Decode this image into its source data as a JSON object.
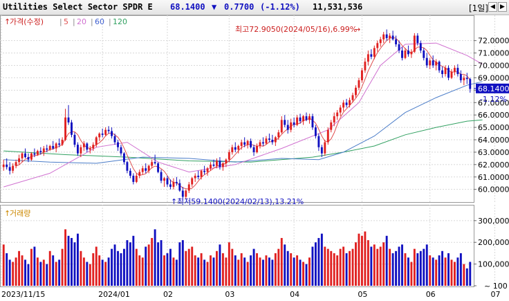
{
  "header": {
    "title": "Utilities Select Sector SPDR E",
    "price": "68.1400",
    "change_arrow": "▼",
    "change": "0.7700",
    "change_pct": "(-1.12%)",
    "volume": "11,531,536",
    "period": "[1일]",
    "btn_prev": "◀",
    "btn_next": "▶"
  },
  "legend": {
    "label": "가격(수정)",
    "ma": [
      {
        "label": "5",
        "color": "#e05050"
      },
      {
        "label": "20",
        "color": "#d070d0"
      },
      {
        "label": "60",
        "color": "#4060d0"
      },
      {
        "label": "120",
        "color": "#30a060"
      }
    ]
  },
  "volume_legend": "거래량",
  "colors": {
    "up": "#e02020",
    "down": "#1010c0",
    "ma5": "#e05050",
    "ma20": "#d070d0",
    "ma60": "#4a7cc8",
    "ma120": "#30a060"
  },
  "chart_data": {
    "type": "candlestick",
    "price_axis": {
      "ticks": [
        "72.0000",
        "71.0000",
        "70.0000",
        "69.0000",
        "68.0000",
        "67.0000",
        "66.0000",
        "65.0000",
        "64.0000",
        "63.0000",
        "62.0000",
        "61.0000",
        "60.0000"
      ],
      "ylim": [
        59.2,
        73.6
      ]
    },
    "volume_axis": {
      "ticks": [
        "300,000",
        "200,000",
        "100,000",
        "100"
      ],
      "ylim": [
        0,
        360000
      ]
    },
    "x_tick_labels": [
      {
        "label": "2023/11/15",
        "index": 0
      },
      {
        "label": "2024/01",
        "index": 32
      },
      {
        "label": "02",
        "index": 53
      },
      {
        "label": "03",
        "index": 73
      },
      {
        "label": "04",
        "index": 94
      },
      {
        "label": "05",
        "index": 116
      },
      {
        "label": "06",
        "index": 138
      },
      {
        "label": "07",
        "index": 159
      }
    ],
    "current_price": {
      "value": 68.14,
      "label": "68.1400",
      "pct_label": "-1.12%"
    },
    "high_annotation": {
      "text": "최고72.9050(2024/05/16),6.99%",
      "index": 125,
      "value": 72.905
    },
    "low_annotation": {
      "text": "최저59.1400(2024/02/13),13.21%",
      "index": 61,
      "value": 59.14
    },
    "ma_series": {
      "ma20": [
        [
          0,
          60.2
        ],
        [
          15,
          61.3
        ],
        [
          30,
          63.4
        ],
        [
          40,
          63.8
        ],
        [
          50,
          62.2
        ],
        [
          60,
          61.4
        ],
        [
          75,
          62.0
        ],
        [
          90,
          63.3
        ],
        [
          105,
          64.8
        ],
        [
          115,
          67.0
        ],
        [
          122,
          70.0
        ],
        [
          130,
          71.7
        ],
        [
          140,
          71.8
        ],
        [
          150,
          70.8
        ],
        [
          155,
          70.1
        ]
      ],
      "ma60": [
        [
          0,
          62.4
        ],
        [
          15,
          62.2
        ],
        [
          30,
          62.1
        ],
        [
          45,
          62.6
        ],
        [
          60,
          62.5
        ],
        [
          75,
          62.2
        ],
        [
          90,
          62.5
        ],
        [
          102,
          62.4
        ],
        [
          110,
          63.0
        ],
        [
          120,
          64.3
        ],
        [
          130,
          66.2
        ],
        [
          140,
          67.4
        ],
        [
          150,
          68.4
        ],
        [
          155,
          68.7
        ]
      ],
      "ma120": [
        [
          0,
          63.1
        ],
        [
          20,
          62.8
        ],
        [
          40,
          62.6
        ],
        [
          60,
          62.3
        ],
        [
          80,
          62.2
        ],
        [
          100,
          62.6
        ],
        [
          110,
          63.0
        ],
        [
          120,
          63.5
        ],
        [
          130,
          64.4
        ],
        [
          140,
          65.0
        ],
        [
          150,
          65.5
        ],
        [
          155,
          65.6
        ]
      ]
    },
    "candles": [
      [
        61.8,
        62.4,
        61.5,
        62.0,
        190000
      ],
      [
        62.0,
        62.5,
        61.6,
        61.8,
        150000
      ],
      [
        61.8,
        62.2,
        61.2,
        61.5,
        120000
      ],
      [
        61.5,
        62.1,
        61.3,
        61.9,
        110000
      ],
      [
        61.9,
        62.4,
        61.7,
        62.2,
        130000
      ],
      [
        62.2,
        62.8,
        62.0,
        62.5,
        160000
      ],
      [
        62.5,
        63.0,
        62.2,
        62.9,
        140000
      ],
      [
        62.9,
        63.3,
        62.5,
        62.6,
        120000
      ],
      [
        62.6,
        62.9,
        62.2,
        62.4,
        100000
      ],
      [
        62.4,
        63.0,
        62.3,
        62.9,
        170000
      ],
      [
        62.9,
        63.3,
        62.6,
        62.8,
        180000
      ],
      [
        62.8,
        63.2,
        62.7,
        63.1,
        130000
      ],
      [
        63.1,
        63.4,
        62.8,
        63.0,
        110000
      ],
      [
        63.0,
        63.5,
        62.7,
        63.3,
        120000
      ],
      [
        63.3,
        63.6,
        63.0,
        63.2,
        100000
      ],
      [
        63.2,
        63.6,
        63.1,
        63.5,
        160000
      ],
      [
        63.5,
        63.9,
        63.2,
        63.3,
        140000
      ],
      [
        63.3,
        63.8,
        63.0,
        63.7,
        110000
      ],
      [
        63.7,
        64.1,
        63.4,
        63.6,
        120000
      ],
      [
        63.6,
        64.2,
        63.5,
        64.0,
        170000
      ],
      [
        64.0,
        66.5,
        63.9,
        65.8,
        260000
      ],
      [
        65.8,
        66.8,
        65.2,
        65.4,
        230000
      ],
      [
        65.4,
        65.6,
        64.2,
        64.4,
        220000
      ],
      [
        64.4,
        64.6,
        63.4,
        63.6,
        200000
      ],
      [
        63.6,
        63.8,
        62.7,
        62.9,
        240000
      ],
      [
        62.9,
        63.6,
        62.6,
        63.4,
        160000
      ],
      [
        63.4,
        63.9,
        63.1,
        63.7,
        130000
      ],
      [
        63.7,
        63.8,
        63.0,
        63.2,
        110000
      ],
      [
        63.2,
        63.5,
        62.9,
        63.3,
        100000
      ],
      [
        63.3,
        63.8,
        63.1,
        63.6,
        150000
      ],
      [
        63.6,
        64.3,
        63.4,
        64.2,
        180000
      ],
      [
        64.2,
        64.6,
        63.9,
        64.5,
        140000
      ],
      [
        64.5,
        64.9,
        64.2,
        64.4,
        120000
      ],
      [
        64.4,
        65.0,
        64.3,
        64.8,
        110000
      ],
      [
        64.8,
        65.1,
        64.5,
        64.7,
        130000
      ],
      [
        64.7,
        65.0,
        64.1,
        64.3,
        170000
      ],
      [
        64.3,
        64.5,
        63.6,
        63.8,
        190000
      ],
      [
        63.8,
        64.0,
        63.1,
        63.4,
        160000
      ],
      [
        63.4,
        63.6,
        62.7,
        62.9,
        150000
      ],
      [
        62.9,
        63.0,
        62.0,
        62.2,
        170000
      ],
      [
        62.2,
        62.3,
        61.3,
        61.5,
        210000
      ],
      [
        61.5,
        61.7,
        60.9,
        61.1,
        200000
      ],
      [
        61.1,
        61.3,
        60.4,
        60.6,
        230000
      ],
      [
        60.6,
        61.3,
        60.5,
        61.1,
        170000
      ],
      [
        61.1,
        61.6,
        60.9,
        61.4,
        140000
      ],
      [
        61.4,
        61.9,
        61.2,
        61.7,
        130000
      ],
      [
        61.7,
        62.1,
        61.3,
        61.5,
        180000
      ],
      [
        61.5,
        62.0,
        61.3,
        61.9,
        190000
      ],
      [
        61.9,
        62.4,
        61.7,
        62.2,
        220000
      ],
      [
        62.2,
        62.8,
        62.0,
        62.1,
        260000
      ],
      [
        62.1,
        62.2,
        61.3,
        61.4,
        200000
      ],
      [
        61.4,
        61.6,
        60.5,
        60.7,
        210000
      ],
      [
        60.7,
        61.0,
        60.2,
        60.9,
        140000
      ],
      [
        60.9,
        61.1,
        60.2,
        60.4,
        150000
      ],
      [
        60.4,
        60.8,
        60.0,
        60.2,
        170000
      ],
      [
        60.2,
        60.9,
        60.0,
        60.6,
        130000
      ],
      [
        60.6,
        61.0,
        60.3,
        60.5,
        120000
      ],
      [
        60.5,
        60.8,
        59.8,
        59.9,
        200000
      ],
      [
        59.9,
        60.2,
        59.1,
        59.4,
        210000
      ],
      [
        59.4,
        60.0,
        59.2,
        59.9,
        160000
      ],
      [
        59.9,
        60.6,
        59.7,
        60.4,
        170000
      ],
      [
        60.4,
        61.0,
        60.2,
        60.9,
        180000
      ],
      [
        60.9,
        61.3,
        60.6,
        61.1,
        140000
      ],
      [
        61.1,
        61.5,
        60.8,
        61.0,
        130000
      ],
      [
        61.0,
        61.6,
        60.8,
        61.5,
        150000
      ],
      [
        61.5,
        61.9,
        61.2,
        61.4,
        120000
      ],
      [
        61.4,
        61.8,
        61.1,
        61.7,
        110000
      ],
      [
        61.7,
        62.2,
        61.5,
        62.0,
        140000
      ],
      [
        62.0,
        62.4,
        61.8,
        61.9,
        130000
      ],
      [
        61.9,
        62.5,
        61.7,
        62.3,
        160000
      ],
      [
        62.3,
        62.6,
        61.6,
        61.8,
        190000
      ],
      [
        61.8,
        62.2,
        61.5,
        62.1,
        150000
      ],
      [
        62.1,
        62.5,
        61.8,
        62.4,
        130000
      ],
      [
        62.4,
        63.2,
        62.2,
        63.0,
        200000
      ],
      [
        63.0,
        63.6,
        62.8,
        63.4,
        170000
      ],
      [
        63.4,
        63.8,
        63.0,
        63.2,
        140000
      ],
      [
        63.2,
        63.6,
        62.9,
        63.5,
        120000
      ],
      [
        63.5,
        64.0,
        63.2,
        63.8,
        150000
      ],
      [
        63.8,
        64.2,
        63.4,
        63.6,
        130000
      ],
      [
        63.6,
        64.0,
        63.3,
        63.9,
        110000
      ],
      [
        63.9,
        64.1,
        63.3,
        63.4,
        140000
      ],
      [
        63.4,
        63.6,
        62.7,
        63.0,
        170000
      ],
      [
        63.0,
        63.7,
        62.9,
        63.5,
        150000
      ],
      [
        63.5,
        64.0,
        63.3,
        63.8,
        130000
      ],
      [
        63.8,
        64.2,
        63.5,
        63.7,
        120000
      ],
      [
        63.7,
        64.3,
        63.6,
        64.1,
        140000
      ],
      [
        64.1,
        64.5,
        63.8,
        64.0,
        130000
      ],
      [
        64.0,
        64.4,
        63.6,
        63.8,
        120000
      ],
      [
        63.8,
        64.3,
        63.5,
        64.2,
        150000
      ],
      [
        64.2,
        64.8,
        64.0,
        64.6,
        170000
      ],
      [
        64.6,
        65.9,
        64.5,
        65.6,
        220000
      ],
      [
        65.6,
        66.0,
        65.0,
        65.2,
        190000
      ],
      [
        65.2,
        65.6,
        64.5,
        64.8,
        160000
      ],
      [
        64.8,
        65.7,
        64.6,
        65.4,
        150000
      ],
      [
        65.4,
        65.8,
        65.0,
        65.2,
        130000
      ],
      [
        65.2,
        66.0,
        65.1,
        65.8,
        140000
      ],
      [
        65.8,
        66.1,
        65.3,
        65.5,
        120000
      ],
      [
        65.5,
        66.0,
        65.2,
        65.9,
        110000
      ],
      [
        65.9,
        66.2,
        65.5,
        65.6,
        100000
      ],
      [
        65.6,
        66.1,
        65.3,
        65.9,
        130000
      ],
      [
        65.9,
        66.1,
        64.8,
        65.0,
        180000
      ],
      [
        65.0,
        65.2,
        64.1,
        64.3,
        200000
      ],
      [
        64.3,
        64.5,
        63.1,
        63.4,
        220000
      ],
      [
        63.4,
        63.6,
        62.6,
        62.9,
        240000
      ],
      [
        62.9,
        64.0,
        62.7,
        63.8,
        180000
      ],
      [
        63.8,
        65.0,
        63.6,
        64.8,
        170000
      ],
      [
        64.8,
        65.6,
        64.6,
        65.4,
        160000
      ],
      [
        65.4,
        66.2,
        65.1,
        65.9,
        150000
      ],
      [
        65.9,
        66.4,
        65.6,
        66.2,
        140000
      ],
      [
        66.2,
        66.8,
        65.9,
        66.6,
        170000
      ],
      [
        66.6,
        67.2,
        66.3,
        67.0,
        180000
      ],
      [
        67.0,
        67.3,
        66.6,
        66.8,
        150000
      ],
      [
        66.8,
        67.4,
        66.6,
        67.2,
        160000
      ],
      [
        67.2,
        67.8,
        67.0,
        67.6,
        170000
      ],
      [
        67.6,
        68.4,
        67.4,
        68.2,
        200000
      ],
      [
        68.2,
        69.0,
        68.0,
        68.8,
        240000
      ],
      [
        68.8,
        69.8,
        68.6,
        69.6,
        230000
      ],
      [
        69.6,
        70.6,
        69.4,
        70.3,
        250000
      ],
      [
        70.3,
        71.2,
        70.0,
        70.9,
        210000
      ],
      [
        70.9,
        71.3,
        70.5,
        70.7,
        180000
      ],
      [
        70.7,
        71.6,
        70.5,
        71.4,
        190000
      ],
      [
        71.4,
        72.0,
        71.1,
        71.8,
        170000
      ],
      [
        71.8,
        72.3,
        71.5,
        72.1,
        180000
      ],
      [
        72.1,
        72.7,
        71.8,
        72.5,
        200000
      ],
      [
        72.5,
        72.9,
        72.0,
        72.2,
        230000
      ],
      [
        72.2,
        72.6,
        71.8,
        72.4,
        170000
      ],
      [
        72.4,
        72.8,
        72.0,
        72.1,
        150000
      ],
      [
        72.1,
        72.4,
        71.5,
        71.7,
        160000
      ],
      [
        71.7,
        72.0,
        71.0,
        71.2,
        180000
      ],
      [
        71.2,
        71.5,
        70.4,
        70.6,
        190000
      ],
      [
        70.6,
        71.4,
        70.5,
        71.2,
        150000
      ],
      [
        71.2,
        71.6,
        70.7,
        70.9,
        130000
      ],
      [
        70.9,
        71.3,
        70.6,
        71.1,
        110000
      ],
      [
        71.1,
        72.6,
        71.0,
        72.4,
        170000
      ],
      [
        72.4,
        72.6,
        71.6,
        71.8,
        150000
      ],
      [
        71.8,
        72.0,
        71.0,
        71.2,
        160000
      ],
      [
        71.2,
        71.4,
        70.4,
        70.6,
        170000
      ],
      [
        70.6,
        71.0,
        69.8,
        70.0,
        190000
      ],
      [
        70.0,
        70.6,
        69.7,
        70.4,
        140000
      ],
      [
        70.4,
        70.8,
        69.8,
        70.0,
        130000
      ],
      [
        70.0,
        70.5,
        69.6,
        70.3,
        120000
      ],
      [
        70.3,
        70.4,
        69.4,
        69.6,
        140000
      ],
      [
        69.6,
        69.9,
        69.0,
        69.3,
        160000
      ],
      [
        69.3,
        70.0,
        69.1,
        69.8,
        130000
      ],
      [
        69.8,
        70.0,
        68.8,
        69.0,
        150000
      ],
      [
        69.0,
        69.7,
        68.9,
        69.5,
        120000
      ],
      [
        69.5,
        70.0,
        69.2,
        69.8,
        110000
      ],
      [
        69.8,
        70.1,
        69.1,
        69.3,
        130000
      ],
      [
        69.3,
        69.6,
        68.6,
        68.8,
        150000
      ],
      [
        68.8,
        69.2,
        68.4,
        69.0,
        100000
      ],
      [
        69.0,
        69.4,
        68.5,
        68.9,
        80000
      ],
      [
        68.9,
        69.0,
        67.8,
        68.1,
        110000
      ]
    ]
  }
}
